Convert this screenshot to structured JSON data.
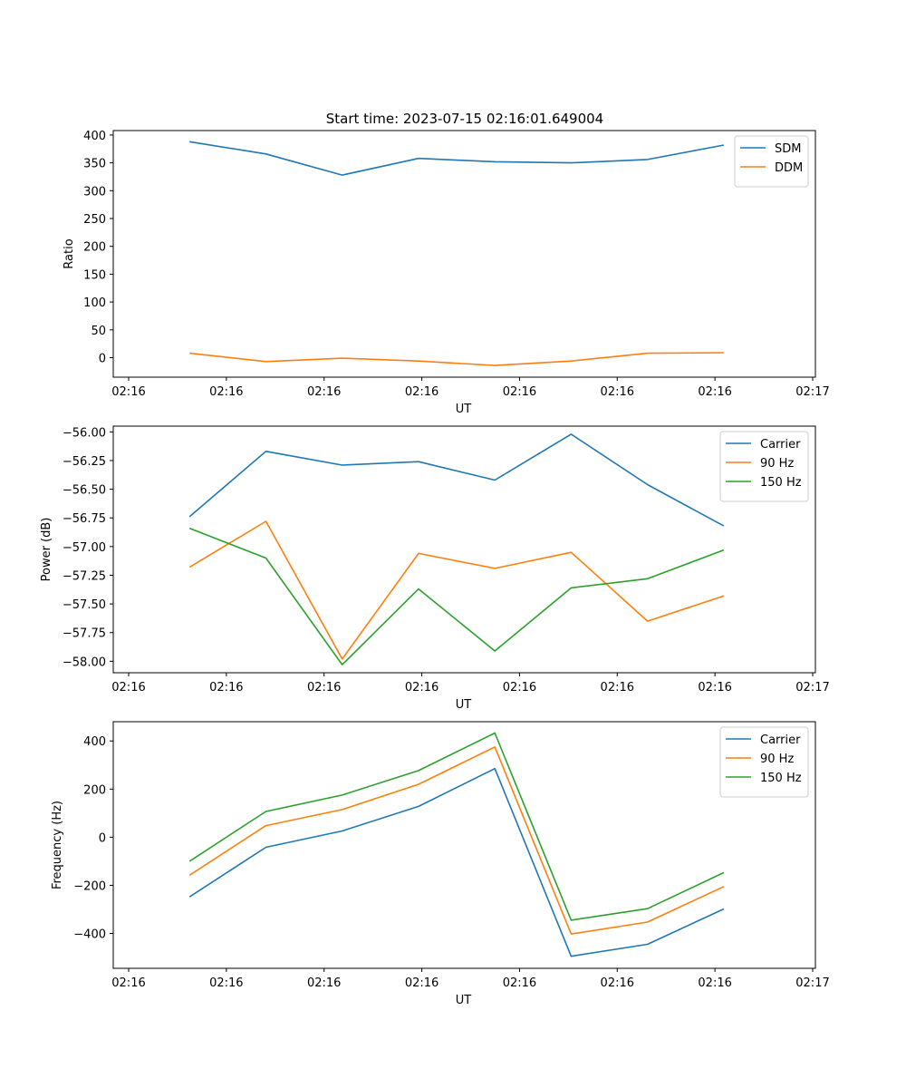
{
  "figure_title": "Start time: 2023-07-15 02:16:01.649004",
  "chart_data": [
    {
      "type": "line",
      "xlabel": "UT",
      "ylabel": "Ratio",
      "x_tick_labels": [
        "02:16",
        "02:16",
        "02:16",
        "02:16",
        "02:16",
        "02:16",
        "02:16"
      ],
      "x_last_tick_label": "02:17",
      "x": [
        1,
        2,
        3,
        4,
        5,
        6,
        7,
        8
      ],
      "xlim": [
        0,
        9.2
      ],
      "ylim": [
        -35,
        408
      ],
      "yticks": [
        "0",
        "50",
        "100",
        "150",
        "200",
        "250",
        "300",
        "350",
        "400"
      ],
      "ytick_values": [
        0,
        50,
        100,
        150,
        200,
        250,
        300,
        350,
        400
      ],
      "legend_position": "top-right",
      "series": [
        {
          "name": "SDM",
          "color": "#1f77b4",
          "values": [
            388,
            366,
            328,
            358,
            352,
            350,
            356,
            382
          ]
        },
        {
          "name": "DDM",
          "color": "#ff7f0e",
          "values": [
            8,
            -7,
            -1,
            -6,
            -14,
            -6,
            8,
            9
          ]
        }
      ]
    },
    {
      "type": "line",
      "xlabel": "UT",
      "ylabel": "Power (dB)",
      "x_tick_labels": [
        "02:16",
        "02:16",
        "02:16",
        "02:16",
        "02:16",
        "02:16",
        "02:16"
      ],
      "x_last_tick_label": "02:17",
      "x": [
        1,
        2,
        3,
        4,
        5,
        6,
        7,
        8
      ],
      "xlim": [
        0,
        9.2
      ],
      "ylim": [
        -58.1,
        -55.95
      ],
      "yticks": [
        "−56.00",
        "−56.25",
        "−56.50",
        "−56.75",
        "−57.00",
        "−57.25",
        "−57.50",
        "−57.75",
        "−58.00"
      ],
      "ytick_values": [
        -56.0,
        -56.25,
        -56.5,
        -56.75,
        -57.0,
        -57.25,
        -57.5,
        -57.75,
        -58.0
      ],
      "legend_position": "top-right",
      "series": [
        {
          "name": "Carrier",
          "color": "#1f77b4",
          "values": [
            -56.74,
            -56.17,
            -56.29,
            -56.26,
            -56.42,
            -56.02,
            -56.46,
            -56.82
          ]
        },
        {
          "name": "90 Hz",
          "color": "#ff7f0e",
          "values": [
            -57.18,
            -56.78,
            -57.98,
            -57.06,
            -57.19,
            -57.05,
            -57.65,
            -57.43
          ]
        },
        {
          "name": "150 Hz",
          "color": "#2ca02c",
          "values": [
            -56.84,
            -57.1,
            -58.03,
            -57.37,
            -57.91,
            -57.36,
            -57.28,
            -57.03
          ]
        }
      ]
    },
    {
      "type": "line",
      "xlabel": "UT",
      "ylabel": "Frequency (Hz)",
      "x_tick_labels": [
        "02:16",
        "02:16",
        "02:16",
        "02:16",
        "02:16",
        "02:16",
        "02:16"
      ],
      "x_last_tick_label": "02:17",
      "x": [
        1,
        2,
        3,
        4,
        5,
        6,
        7,
        8
      ],
      "xlim": [
        0,
        9.2
      ],
      "ylim": [
        -545,
        480
      ],
      "yticks": [
        "−400",
        "−200",
        "0",
        "200",
        "400"
      ],
      "ytick_values": [
        -400,
        -200,
        0,
        200,
        400
      ],
      "legend_position": "top-right",
      "series": [
        {
          "name": "Carrier",
          "color": "#1f77b4",
          "values": [
            -248,
            -42,
            26,
            128,
            285,
            -495,
            -445,
            -298
          ]
        },
        {
          "name": "90 Hz",
          "color": "#ff7f0e",
          "values": [
            -158,
            48,
            115,
            220,
            375,
            -402,
            -353,
            -205
          ]
        },
        {
          "name": "150 Hz",
          "color": "#2ca02c",
          "values": [
            -100,
            107,
            175,
            277,
            433,
            -345,
            -297,
            -147
          ]
        }
      ]
    }
  ]
}
